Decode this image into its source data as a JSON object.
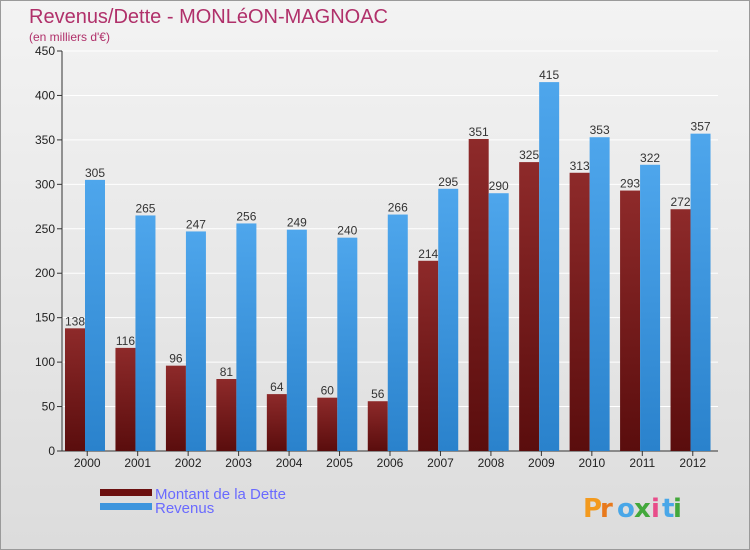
{
  "title": "Revenus/Dette - MONLéON-MAGNOAC",
  "subtitle": "(en milliers d'€)",
  "brand": "Proxiti",
  "colors": {
    "dette": "#7a1a1a",
    "revenus": "#3d95dd",
    "title": "#b0306a",
    "legend_text": "#6a6aff"
  },
  "chart_data": {
    "type": "bar",
    "categories": [
      "2000",
      "2001",
      "2002",
      "2003",
      "2004",
      "2005",
      "2006",
      "2007",
      "2008",
      "2009",
      "2010",
      "2011",
      "2012"
    ],
    "series": [
      {
        "name": "Montant de la Dette",
        "values": [
          138,
          116,
          96,
          81,
          64,
          60,
          56,
          214,
          351,
          325,
          313,
          293,
          272
        ]
      },
      {
        "name": "Revenus",
        "values": [
          305,
          265,
          247,
          256,
          249,
          240,
          266,
          295,
          290,
          415,
          353,
          322,
          357
        ]
      }
    ],
    "ylim": [
      0,
      450
    ],
    "yticks": [
      0,
      50,
      100,
      150,
      200,
      250,
      300,
      350,
      400,
      450
    ],
    "grid": true,
    "legend_position": "bottom-left"
  }
}
